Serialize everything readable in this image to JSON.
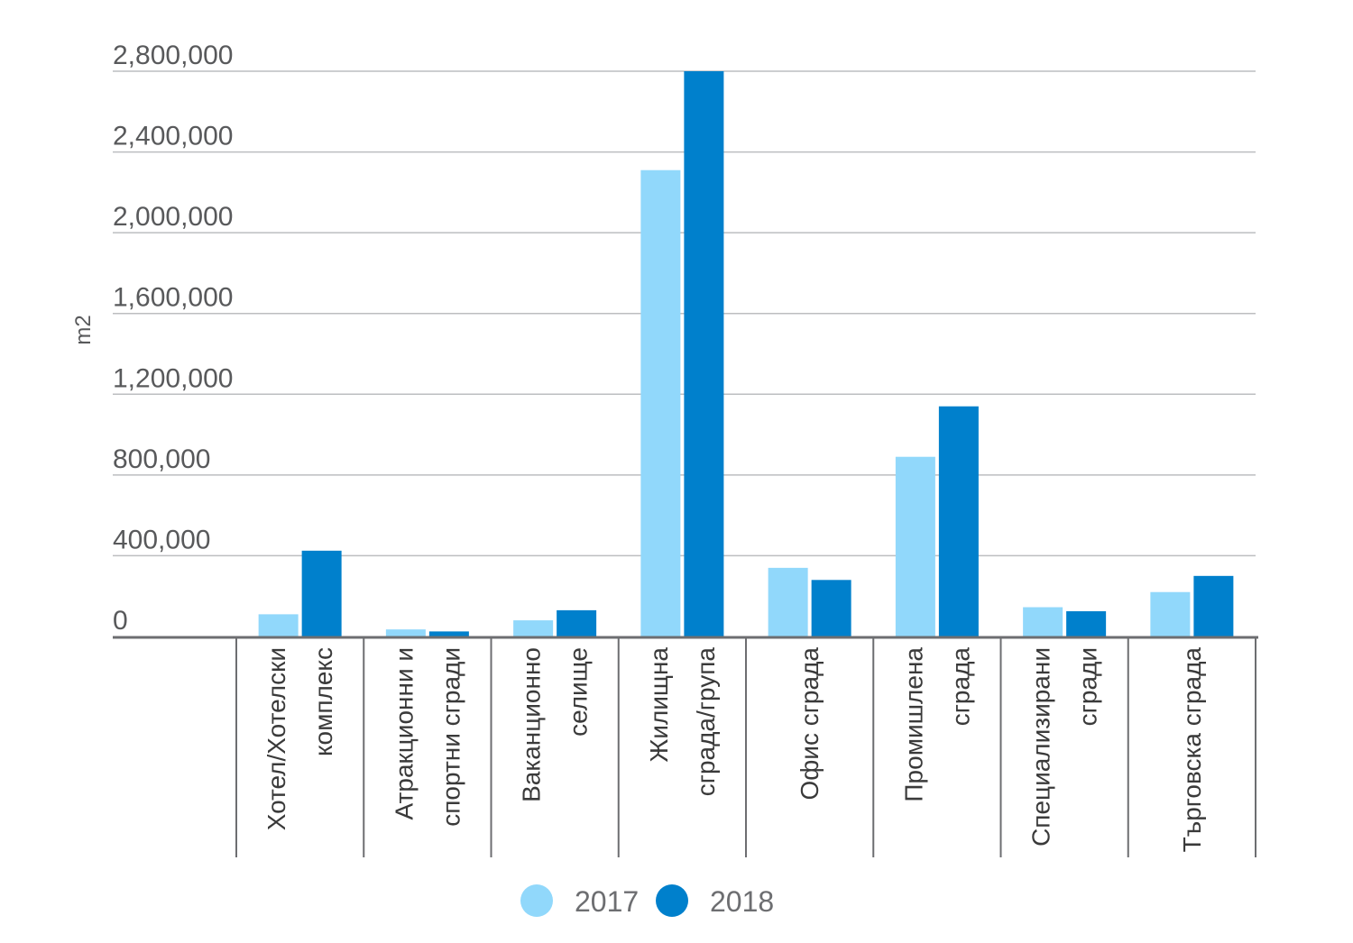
{
  "chart_data": {
    "type": "bar",
    "ylabel": "m2",
    "ylim": [
      0,
      2800000
    ],
    "yticks": [
      0,
      400000,
      800000,
      1200000,
      1600000,
      2000000,
      2400000,
      2800000
    ],
    "ytick_labels": [
      "0",
      "400,000",
      "800,000",
      "1,200,000",
      "1,600,000",
      "2,000,000",
      "2,400,000",
      "2,800,000"
    ],
    "grid": true,
    "legend_position": "bottom-center",
    "categories": [
      [
        "Хотел/Хотелски",
        "комплекс"
      ],
      [
        "Атракционни и",
        "спортни сгради"
      ],
      [
        "Ваканционно",
        "селище"
      ],
      [
        "Жилищна",
        "сграда/група"
      ],
      [
        "Офис сграда"
      ],
      [
        "Промишлена",
        "сграда"
      ],
      [
        "Специализирани",
        "сгради"
      ],
      [
        "Търговска сграда"
      ]
    ],
    "series": [
      {
        "name": "2017",
        "color": "#91d8fb",
        "values": [
          110000,
          35000,
          80000,
          2310000,
          340000,
          890000,
          145000,
          220000
        ]
      },
      {
        "name": "2018",
        "color": "#0080cc",
        "values": [
          425000,
          25000,
          130000,
          2800000,
          280000,
          1140000,
          125000,
          300000
        ]
      }
    ]
  }
}
